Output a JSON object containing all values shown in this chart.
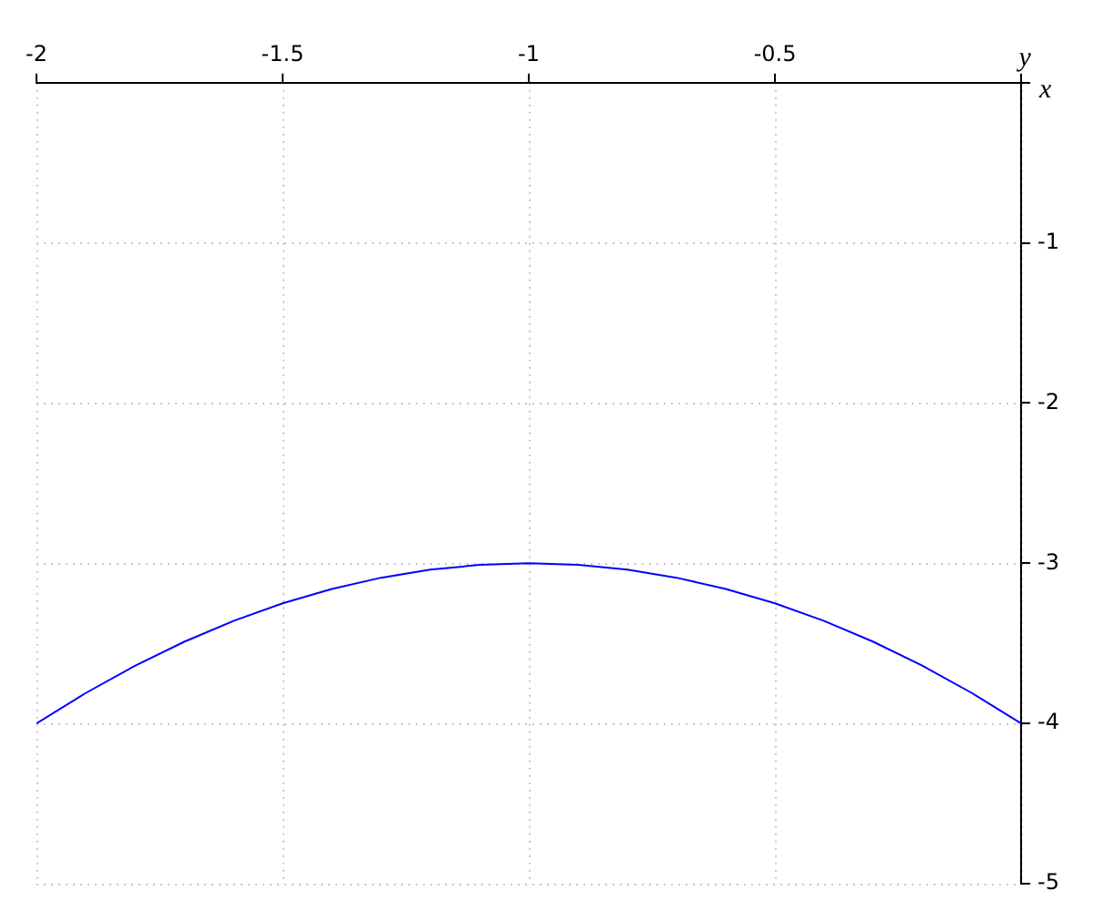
{
  "chart_data": {
    "type": "line",
    "xlabel": "x",
    "ylabel": "y",
    "series": [
      {
        "color": "#0000ff",
        "x": [
          -2,
          -1.9,
          -1.8,
          -1.7,
          -1.6,
          -1.5,
          -1.4,
          -1.3,
          -1.2,
          -1.1,
          -1,
          -0.9,
          -0.8,
          -0.7,
          -0.6,
          -0.5,
          -0.4,
          -0.3,
          -0.2,
          -0.1,
          0
        ],
        "values": [
          -4,
          -3.81,
          -3.64,
          -3.49,
          -3.36,
          -3.25,
          -3.16,
          -3.09,
          -3.04,
          -3.01,
          -3,
          -3.01,
          -3.04,
          -3.09,
          -3.16,
          -3.25,
          -3.36,
          -3.49,
          -3.64,
          -3.81,
          -4
        ]
      }
    ],
    "xlim": [
      -2,
      0
    ],
    "xticks": [
      -2,
      -1.5,
      -1,
      -0.5,
      {
        "value": 0,
        "label": null
      }
    ],
    "ylim": [
      -5,
      0
    ],
    "yticks": [
      {
        "value": 0,
        "label": null
      },
      -1,
      -2,
      -3,
      -4,
      -5
    ],
    "grid": true,
    "marker": "none",
    "line_style": "solid",
    "legend": false
  }
}
